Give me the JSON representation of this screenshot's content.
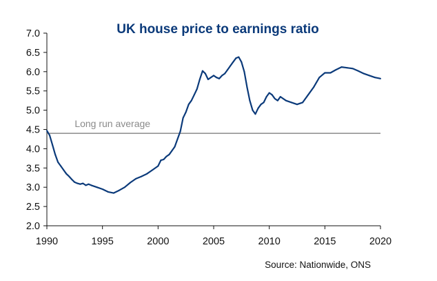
{
  "chart_data": {
    "type": "line",
    "title": "UK house price to earnings ratio",
    "xlabel": "",
    "ylabel": "",
    "xlim": [
      1990,
      2020
    ],
    "ylim": [
      2.0,
      7.0
    ],
    "x_ticks": [
      "1990",
      "1995",
      "2000",
      "2005",
      "2010",
      "2015",
      "2020"
    ],
    "y_ticks": [
      "7.0",
      "6.5",
      "6.0",
      "5.5",
      "5.0",
      "4.5",
      "4.0",
      "3.5",
      "3.0",
      "2.5",
      "2.0"
    ],
    "grid": false,
    "line_color": "#0b3a7a",
    "reference_line": {
      "label": "Long run average",
      "value": 4.4,
      "color": "#8a8a8a"
    },
    "source": "Source: Nationwide, ONS",
    "series": [
      {
        "x": [
          1990.0,
          1990.25,
          1990.5,
          1990.75,
          1991.0,
          1991.25,
          1991.5,
          1991.75,
          1992.0,
          1992.25,
          1992.5,
          1992.75,
          1993.0,
          1993.25,
          1993.5,
          1993.75,
          1994.0,
          1994.5,
          1995.0,
          1995.5,
          1996.0,
          1996.5,
          1997.0,
          1997.5,
          1998.0,
          1998.5,
          1999.0,
          1999.5,
          2000.0,
          2000.25,
          2000.5,
          2000.75,
          2001.0,
          2001.5,
          2002.0,
          2002.25,
          2002.5,
          2002.75,
          2003.0,
          2003.25,
          2003.5,
          2003.75,
          2004.0,
          2004.25,
          2004.5,
          2004.75,
          2005.0,
          2005.25,
          2005.5,
          2005.75,
          2006.0,
          2006.25,
          2006.5,
          2006.75,
          2007.0,
          2007.25,
          2007.5,
          2007.75,
          2008.0,
          2008.25,
          2008.5,
          2008.75,
          2009.0,
          2009.25,
          2009.5,
          2009.75,
          2010.0,
          2010.25,
          2010.5,
          2010.75,
          2011.0,
          2011.5,
          2012.0,
          2012.5,
          2013.0,
          2013.5,
          2014.0,
          2014.5,
          2015.0,
          2015.5,
          2016.0,
          2016.5,
          2017.0,
          2017.5,
          2018.0,
          2018.5,
          2019.0,
          2019.5,
          2020.0
        ],
        "values": [
          4.47,
          4.35,
          4.1,
          3.85,
          3.65,
          3.55,
          3.45,
          3.35,
          3.28,
          3.2,
          3.13,
          3.1,
          3.08,
          3.1,
          3.05,
          3.08,
          3.05,
          3.0,
          2.95,
          2.88,
          2.85,
          2.92,
          3.0,
          3.12,
          3.22,
          3.28,
          3.35,
          3.45,
          3.55,
          3.7,
          3.72,
          3.8,
          3.85,
          4.05,
          4.45,
          4.8,
          4.95,
          5.15,
          5.25,
          5.4,
          5.55,
          5.8,
          6.02,
          5.95,
          5.8,
          5.85,
          5.9,
          5.85,
          5.82,
          5.9,
          5.95,
          6.05,
          6.15,
          6.25,
          6.35,
          6.38,
          6.25,
          6.0,
          5.6,
          5.25,
          5.0,
          4.9,
          5.05,
          5.15,
          5.2,
          5.35,
          5.45,
          5.4,
          5.3,
          5.25,
          5.35,
          5.25,
          5.2,
          5.15,
          5.2,
          5.4,
          5.6,
          5.85,
          5.97,
          5.97,
          6.05,
          6.12,
          6.1,
          6.08,
          6.02,
          5.95,
          5.9,
          5.85,
          5.82
        ]
      }
    ]
  }
}
